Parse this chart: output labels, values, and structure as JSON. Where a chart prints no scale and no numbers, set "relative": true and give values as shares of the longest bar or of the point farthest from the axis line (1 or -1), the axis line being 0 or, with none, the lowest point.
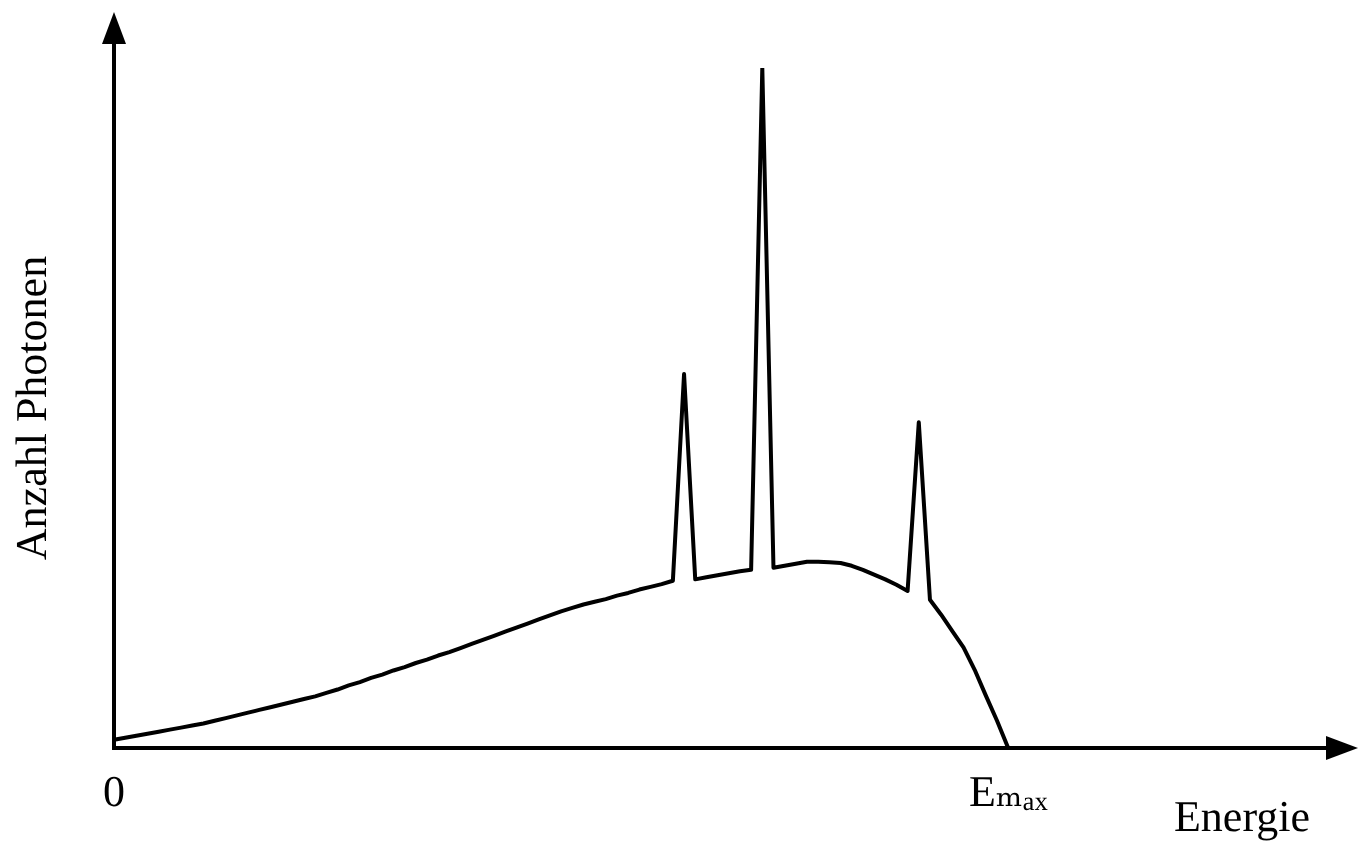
{
  "chart_data": {
    "type": "line",
    "xlabel": "Energie",
    "ylabel": "Anzahl Photonen",
    "relative": true,
    "grid": false,
    "legend": false,
    "marker": "none",
    "line_style": "solid",
    "color": "#000000",
    "categories": [
      "0",
      null,
      null,
      null,
      null,
      null,
      null,
      null,
      null,
      null,
      null,
      null,
      null,
      null,
      null,
      null,
      null,
      null,
      null,
      null,
      null,
      null,
      null,
      null,
      null,
      null,
      null,
      null,
      null,
      null,
      null,
      null,
      null,
      null,
      null,
      null,
      null,
      null,
      null,
      null,
      null,
      null,
      null,
      null,
      null,
      null,
      null,
      null,
      null,
      null,
      null,
      null,
      null,
      null,
      null,
      null,
      null,
      null,
      null,
      null,
      null,
      null,
      null,
      null,
      null,
      null,
      null,
      null,
      null,
      null,
      null,
      null,
      null,
      null,
      null,
      null,
      null,
      null,
      null,
      null,
      "Eₘₐₓ",
      null,
      null,
      null,
      null,
      null,
      null,
      null,
      null,
      null,
      null,
      null,
      null,
      null,
      null,
      null,
      null,
      null,
      null,
      null,
      null,
      null,
      null,
      null,
      null,
      null,
      null,
      null
    ],
    "values": [
      0.012,
      0.015,
      0.018,
      0.021,
      0.024,
      0.027,
      0.03,
      0.033,
      0.036,
      0.04,
      0.044,
      0.048,
      0.052,
      0.056,
      0.06,
      0.064,
      0.068,
      0.072,
      0.076,
      0.081,
      0.086,
      0.092,
      0.097,
      0.103,
      0.108,
      0.114,
      0.119,
      0.125,
      0.13,
      0.136,
      0.141,
      0.147,
      0.153,
      0.159,
      0.165,
      0.171,
      0.177,
      0.183,
      0.189,
      0.195,
      0.201,
      0.206,
      0.211,
      0.215,
      0.219,
      0.224,
      0.228,
      0.233,
      0.237,
      0.241,
      0.246,
      0.55,
      0.248,
      0.251,
      0.254,
      0.257,
      0.26,
      0.262,
      1,
      0.265,
      0.268,
      0.271,
      0.274,
      0.274,
      0.273,
      0.272,
      0.268,
      0.262,
      0.255,
      0.248,
      0.24,
      0.231,
      0.479,
      0.218,
      0.196,
      0.172,
      0.148,
      0.115,
      0.077,
      0.04,
      0,
      null,
      null,
      null,
      null,
      null,
      null,
      null,
      null,
      null,
      null,
      null,
      null,
      null,
      null,
      null,
      null,
      null,
      null,
      null,
      null,
      null,
      null,
      null,
      null,
      null,
      null,
      null
    ]
  }
}
